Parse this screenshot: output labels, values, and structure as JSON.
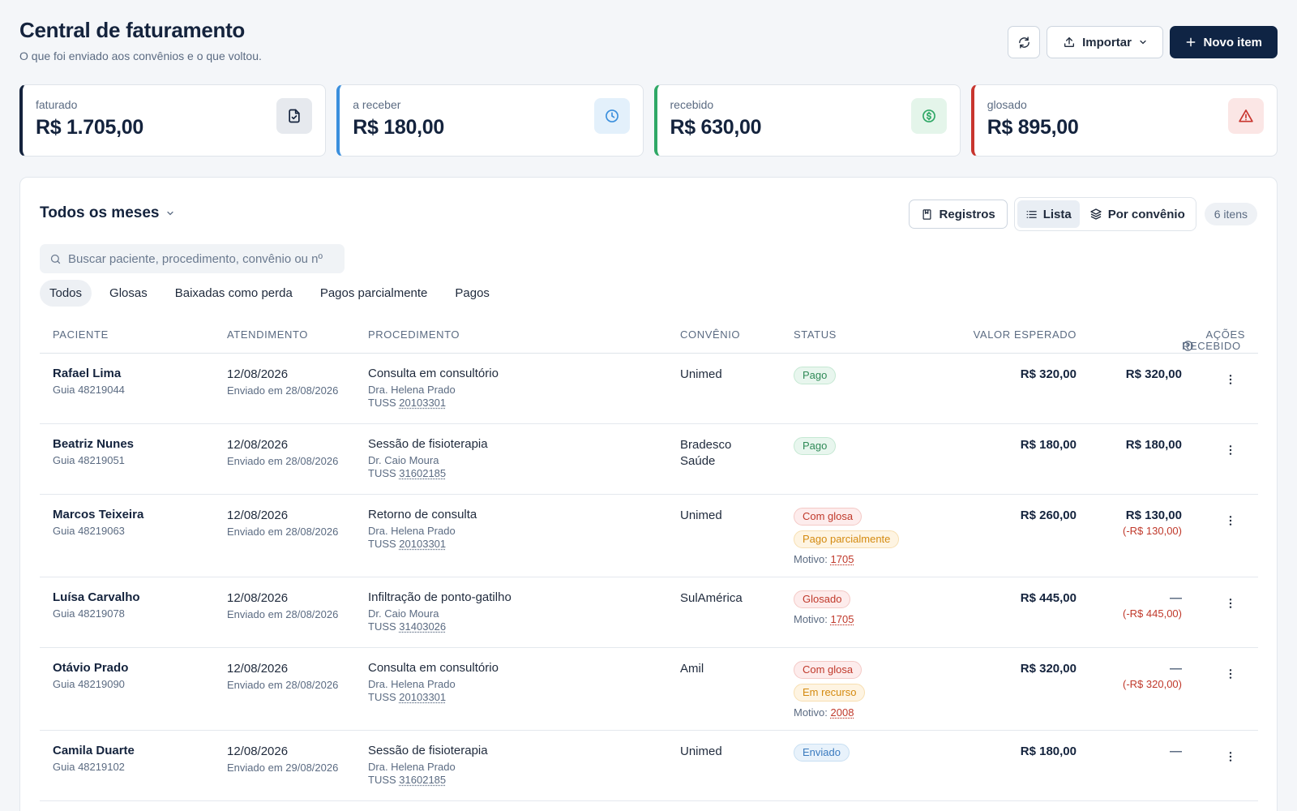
{
  "header": {
    "title": "Central de faturamento",
    "subtitle": "O que foi enviado aos convênios e o que voltou.",
    "import_label": "Importar",
    "new_label": "Novo item"
  },
  "cards": [
    {
      "label": "faturado",
      "value": "R$ 1.705,00",
      "color": "#14233d",
      "icon": "document-icon"
    },
    {
      "label": "a receber",
      "value": "R$ 180,00",
      "color": "#3b8fdd",
      "icon": "clock-icon"
    },
    {
      "label": "recebido",
      "value": "R$ 630,00",
      "color": "#2fa866",
      "icon": "dollar-icon"
    },
    {
      "label": "glosado",
      "value": "R$ 895,00",
      "color": "#c8352e",
      "icon": "alert-icon"
    }
  ],
  "panel": {
    "month_filter": "Todos os meses",
    "registros_label": "Registros",
    "view_list": "Lista",
    "view_convenio": "Por convênio",
    "count": "6 itens",
    "search_placeholder": "Buscar paciente, procedimento, convênio ou nº",
    "tabs": [
      "Todos",
      "Glosas",
      "Baixadas como perda",
      "Pagos parcialmente",
      "Pagos"
    ]
  },
  "table": {
    "headers": {
      "paciente": "PACIENTE",
      "atendimento": "ATENDIMENTO",
      "procedimento": "PROCEDIMENTO",
      "convenio": "CONVÊNIO",
      "status": "STATUS",
      "valor": "VALOR ESPERADO",
      "recebido": "RECEBIDO",
      "acoes": "AÇÕES"
    },
    "rows": [
      {
        "patient": "Rafael Lima",
        "guide": "Guia 48219044",
        "date": "12/08/2026",
        "sent": "Enviado em 28/08/2026",
        "procedure": "Consulta em consultório",
        "doctor": "Dra. Helena Prado",
        "tuss_prefix": "TUSS",
        "tuss": "20103301",
        "convenio": "Unimed",
        "status": [
          {
            "text": "Pago",
            "tone": "green"
          }
        ],
        "motivo_label": "",
        "motivo": "",
        "expected": "R$ 320,00",
        "received": "R$ 320,00",
        "diff": ""
      },
      {
        "patient": "Beatriz Nunes",
        "guide": "Guia 48219051",
        "date": "12/08/2026",
        "sent": "Enviado em 28/08/2026",
        "procedure": "Sessão de fisioterapia",
        "doctor": "Dr. Caio Moura",
        "tuss_prefix": "TUSS",
        "tuss": "31602185",
        "convenio": "Bradesco Saúde",
        "status": [
          {
            "text": "Pago",
            "tone": "green"
          }
        ],
        "motivo_label": "",
        "motivo": "",
        "expected": "R$ 180,00",
        "received": "R$ 180,00",
        "diff": ""
      },
      {
        "patient": "Marcos Teixeira",
        "guide": "Guia 48219063",
        "date": "12/08/2026",
        "sent": "Enviado em 28/08/2026",
        "procedure": "Retorno de consulta",
        "doctor": "Dra. Helena Prado",
        "tuss_prefix": "TUSS",
        "tuss": "20103301",
        "convenio": "Unimed",
        "status": [
          {
            "text": "Com glosa",
            "tone": "red"
          },
          {
            "text": "Pago parcialmente",
            "tone": "orange"
          }
        ],
        "motivo_label": "Motivo:",
        "motivo": "1705",
        "expected": "R$ 260,00",
        "received": "R$ 130,00",
        "diff": "(-R$ 130,00)"
      },
      {
        "patient": "Luísa Carvalho",
        "guide": "Guia 48219078",
        "date": "12/08/2026",
        "sent": "Enviado em 28/08/2026",
        "procedure": "Infiltração de ponto-gatilho",
        "doctor": "Dr. Caio Moura",
        "tuss_prefix": "TUSS",
        "tuss": "31403026",
        "convenio": "SulAmérica",
        "status": [
          {
            "text": "Glosado",
            "tone": "red"
          }
        ],
        "motivo_label": "Motivo:",
        "motivo": "1705",
        "expected": "R$ 445,00",
        "received": "—",
        "diff": "(-R$ 445,00)"
      },
      {
        "patient": "Otávio Prado",
        "guide": "Guia 48219090",
        "date": "12/08/2026",
        "sent": "Enviado em 28/08/2026",
        "procedure": "Consulta em consultório",
        "doctor": "Dra. Helena Prado",
        "tuss_prefix": "TUSS",
        "tuss": "20103301",
        "convenio": "Amil",
        "status": [
          {
            "text": "Com glosa",
            "tone": "red"
          },
          {
            "text": "Em recurso",
            "tone": "orange"
          }
        ],
        "motivo_label": "Motivo:",
        "motivo": "2008",
        "expected": "R$ 320,00",
        "received": "—",
        "diff": "(-R$ 320,00)"
      },
      {
        "patient": "Camila Duarte",
        "guide": "Guia 48219102",
        "date": "12/08/2026",
        "sent": "Enviado em 29/08/2026",
        "procedure": "Sessão de fisioterapia",
        "doctor": "Dra. Helena Prado",
        "tuss_prefix": "TUSS",
        "tuss": "31602185",
        "convenio": "Unimed",
        "status": [
          {
            "text": "Enviado",
            "tone": "blue"
          }
        ],
        "motivo_label": "",
        "motivo": "",
        "expected": "R$ 180,00",
        "received": "—",
        "diff": ""
      }
    ]
  }
}
